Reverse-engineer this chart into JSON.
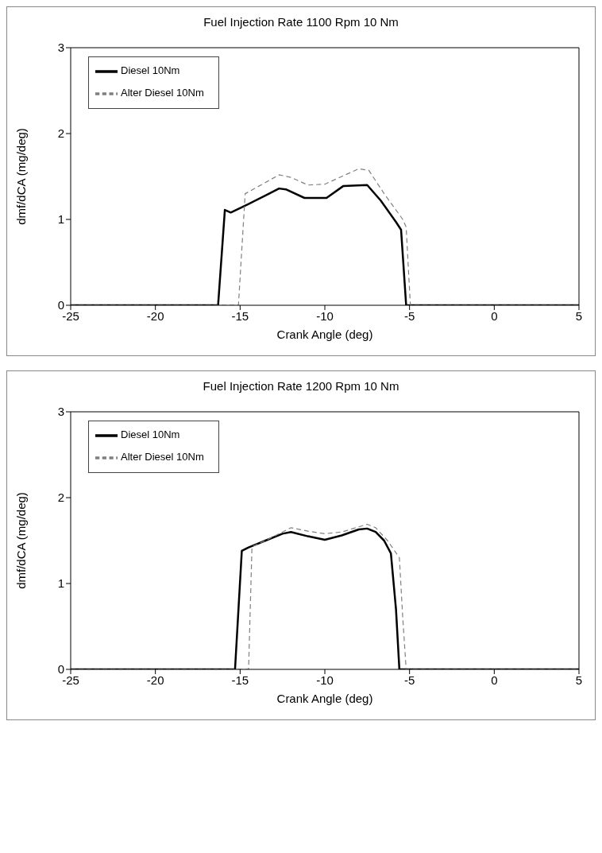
{
  "chart_data": [
    {
      "type": "line",
      "title": "Fuel Injection Rate 1100 Rpm 10 Nm",
      "xlabel": "Crank Angle (deg)",
      "ylabel": "dmf/dCA (mg/deg)",
      "xlim": [
        -25,
        5
      ],
      "xticks": [
        -25,
        -20,
        -15,
        -10,
        -5,
        0,
        5
      ],
      "ylim": [
        0,
        3
      ],
      "yticks": [
        0,
        1,
        2,
        3
      ],
      "grid": false,
      "legend": "top left",
      "marker": "none",
      "series": [
        {
          "name": "Diesel 10Nm",
          "color": "#000000",
          "line_style": "solid",
          "x": [
            -25,
            -16.3,
            -15.9,
            -15.55,
            -14.5,
            -13.5,
            -12.7,
            -12.3,
            -11.2,
            -9.9,
            -8.9,
            -7.5,
            -6.7,
            -5.8,
            -5.5,
            -5.2,
            5
          ],
          "values": [
            0,
            0,
            1.11,
            1.08,
            1.18,
            1.28,
            1.36,
            1.35,
            1.25,
            1.25,
            1.39,
            1.4,
            1.22,
            0.97,
            0.88,
            0,
            0
          ]
        },
        {
          "name": "Alter Diesel 10Nm",
          "color": "#808080",
          "line_style": "dashed",
          "x": [
            -25,
            -15.1,
            -14.7,
            -13.5,
            -12.7,
            -12,
            -11,
            -10,
            -9,
            -8,
            -7.4,
            -6.5,
            -5.4,
            -5.2,
            -4.95,
            5
          ],
          "values": [
            0,
            0,
            1.3,
            1.43,
            1.52,
            1.49,
            1.4,
            1.41,
            1.5,
            1.59,
            1.57,
            1.3,
            1.0,
            0.91,
            0,
            0
          ]
        }
      ]
    },
    {
      "type": "line",
      "title": "Fuel Injection Rate 1200 Rpm 10 Nm",
      "xlabel": "Crank Angle (deg)",
      "ylabel": "dmf/dCA (mg/deg)",
      "xlim": [
        -25,
        5
      ],
      "xticks": [
        -25,
        -20,
        -15,
        -10,
        -5,
        0,
        5
      ],
      "ylim": [
        0,
        3
      ],
      "yticks": [
        0,
        1,
        2,
        3
      ],
      "grid": false,
      "legend": "top left",
      "marker": "none",
      "series": [
        {
          "name": "Diesel 10Nm",
          "color": "#000000",
          "line_style": "solid",
          "x": [
            -25,
            -15.3,
            -14.9,
            -14.5,
            -13.5,
            -12.5,
            -12,
            -11,
            -10,
            -9,
            -8,
            -7.5,
            -7,
            -6.5,
            -6.1,
            -5.8,
            -5.6,
            5
          ],
          "values": [
            0,
            0,
            1.38,
            1.42,
            1.5,
            1.58,
            1.6,
            1.55,
            1.51,
            1.56,
            1.63,
            1.64,
            1.6,
            1.5,
            1.35,
            0.7,
            0,
            0
          ]
        },
        {
          "name": "Alter Diesel 10Nm",
          "color": "#808080",
          "line_style": "dashed",
          "x": [
            -25,
            -14.5,
            -14.3,
            -13.5,
            -12.5,
            -12,
            -11,
            -10,
            -9,
            -8,
            -7.5,
            -7,
            -6.3,
            -5.6,
            -5.4,
            -5.2,
            5
          ],
          "values": [
            0,
            0,
            1.43,
            1.5,
            1.6,
            1.65,
            1.61,
            1.58,
            1.6,
            1.66,
            1.69,
            1.65,
            1.5,
            1.3,
            0.6,
            0,
            0
          ]
        }
      ]
    }
  ]
}
